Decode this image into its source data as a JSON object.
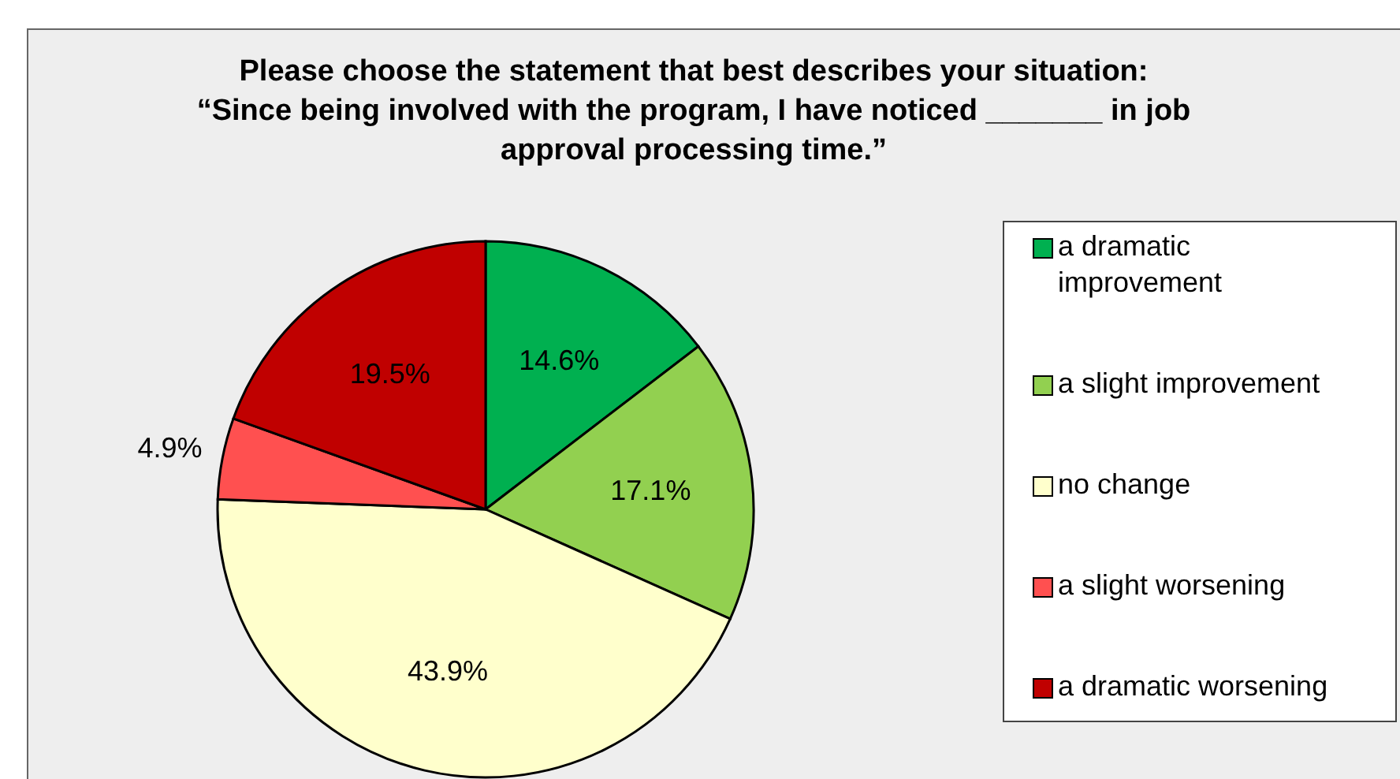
{
  "chart_data": {
    "type": "pie",
    "title": "Please choose the statement that best describes your situation: “Since being involved with the program, I have noticed _______ in job approval processing time.”",
    "categories": [
      "a dramatic improvement",
      "a slight improvement",
      "no change",
      "a slight worsening",
      "a dramatic worsening"
    ],
    "values": [
      14.6,
      17.1,
      43.9,
      4.9,
      19.5
    ],
    "colors": [
      "#00b050",
      "#92d050",
      "#ffffcc",
      "#ff5050",
      "#c00000"
    ],
    "value_labels": [
      "14.6%",
      "17.1%",
      "43.9%",
      "4.9%",
      "19.5%"
    ],
    "legend": "right"
  }
}
